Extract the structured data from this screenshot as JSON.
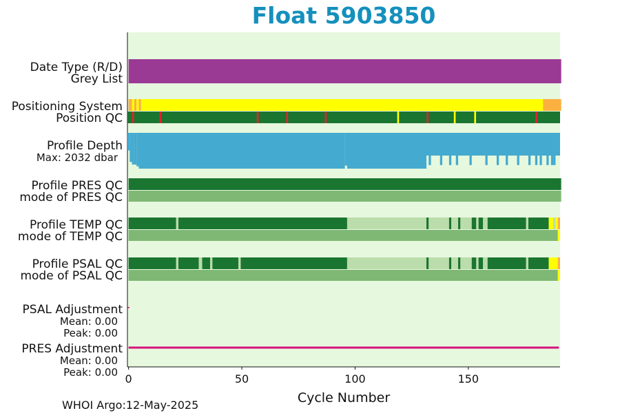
{
  "chart_data": {
    "type": "heatmap",
    "title": "Float 5903850",
    "xlabel": "Cycle Number",
    "xlim": [
      -0.5,
      190.5
    ],
    "xticks": [
      0,
      50,
      100,
      150
    ],
    "xtick_labels": [
      "0",
      "50",
      "100",
      "150"
    ],
    "footer": "WHOI Argo:12-May-2025",
    "colors": {
      "background": "#e6f8de",
      "title": "#1590bd",
      "purple": "#9a3a94",
      "yellow": "#ffff00",
      "orange": "#fbb040",
      "green_dark": "#1a7530",
      "green_mid": "#7fb874",
      "green_light": "#bbdcab",
      "red": "#e8202a",
      "depth_blue": "#44aad0",
      "max_text": "#1590bd",
      "pres_adj": "#d6127a"
    },
    "rows": {
      "date_type": {
        "label": "Date Type (R/D)",
        "segments": [
          {
            "from": 0,
            "to": 191,
            "color": "purple"
          }
        ]
      },
      "grey_list": {
        "label": "Grey List"
      },
      "positioning_system": {
        "label": "Positioning System",
        "segments": [
          {
            "from": 0,
            "to": 1.5,
            "color": "orange"
          },
          {
            "from": 1.5,
            "to": 2.5,
            "color": "yellow"
          },
          {
            "from": 2.5,
            "to": 3.5,
            "color": "orange"
          },
          {
            "from": 3.5,
            "to": 4.5,
            "color": "yellow"
          },
          {
            "from": 4.5,
            "to": 5.5,
            "color": "orange"
          },
          {
            "from": 5.5,
            "to": 183,
            "color": "yellow"
          },
          {
            "from": 183,
            "to": 191,
            "color": "orange"
          }
        ]
      },
      "position_qc": {
        "label": "Position QC",
        "base": "green_dark",
        "marks": [
          {
            "x": 2,
            "color": "red"
          },
          {
            "x": 14,
            "color": "red"
          },
          {
            "x": 57,
            "color": "red"
          },
          {
            "x": 70,
            "color": "red"
          },
          {
            "x": 87,
            "color": "red"
          },
          {
            "x": 119,
            "color": "yellow"
          },
          {
            "x": 132,
            "color": "red"
          },
          {
            "x": 144,
            "color": "yellow"
          },
          {
            "x": 153,
            "color": "yellow"
          },
          {
            "x": 180,
            "color": "red"
          }
        ]
      },
      "profile_depth": {
        "label": "Profile Depth",
        "max_label": "Max: 2032 dbar",
        "max_dbar": 2032,
        "depths": [
          {
            "from": 0,
            "to": 1,
            "dbar": 1000
          },
          {
            "from": 1,
            "to": 2,
            "dbar": 1650
          },
          {
            "from": 2,
            "to": 3,
            "dbar": 1800
          },
          {
            "from": 3,
            "to": 4,
            "dbar": 1800
          },
          {
            "from": 4,
            "to": 5,
            "dbar": 1900
          },
          {
            "from": 5,
            "to": 96,
            "dbar": 2032
          },
          {
            "from": 96,
            "to": 97,
            "dbar": 1860
          },
          {
            "from": 97,
            "to": 132,
            "dbar": 2032
          }
        ],
        "late_base_dbar": 1290,
        "late_spikes": [
          133,
          138,
          142,
          145,
          151,
          158,
          163,
          167,
          172,
          177,
          180,
          182,
          185,
          187,
          188
        ],
        "late_spike_dbar": 1830
      },
      "pres_qc": {
        "label": "Profile PRES QC",
        "segments": [
          {
            "from": 0,
            "to": 191,
            "color": "green_dark"
          }
        ]
      },
      "pres_mode": {
        "label": "mode of PRES QC",
        "segments": [
          {
            "from": 0,
            "to": 191,
            "color": "green_mid"
          }
        ]
      },
      "temp_qc": {
        "label": "Profile TEMP QC",
        "segments": [
          {
            "from": 0,
            "to": 21,
            "color": "green_dark"
          },
          {
            "from": 21,
            "to": 22,
            "color": "green_light"
          },
          {
            "from": 22,
            "to": 96.5,
            "color": "green_dark"
          },
          {
            "from": 96.5,
            "to": 131.5,
            "color": "green_light"
          },
          {
            "from": 131.5,
            "to": 132.5,
            "color": "green_dark"
          },
          {
            "from": 132.5,
            "to": 141.5,
            "color": "green_light"
          },
          {
            "from": 141.5,
            "to": 142.5,
            "color": "green_dark"
          },
          {
            "from": 142.5,
            "to": 145.5,
            "color": "green_light"
          },
          {
            "from": 145.5,
            "to": 146.5,
            "color": "green_dark"
          },
          {
            "from": 146.5,
            "to": 151.5,
            "color": "green_light"
          },
          {
            "from": 151.5,
            "to": 153.5,
            "color": "green_dark"
          },
          {
            "from": 153.5,
            "to": 154.5,
            "color": "green_light"
          },
          {
            "from": 154.5,
            "to": 156.5,
            "color": "green_dark"
          },
          {
            "from": 156.5,
            "to": 158.5,
            "color": "green_light"
          },
          {
            "from": 158.5,
            "to": 175.5,
            "color": "green_dark"
          },
          {
            "from": 175.5,
            "to": 176.5,
            "color": "green_light"
          },
          {
            "from": 176.5,
            "to": 185.5,
            "color": "green_dark"
          },
          {
            "from": 185.5,
            "to": 187.5,
            "color": "yellow"
          },
          {
            "from": 187.5,
            "to": 188.5,
            "color": "green_light"
          },
          {
            "from": 188.5,
            "to": 189.5,
            "color": "yellow"
          },
          {
            "from": 189.5,
            "to": 190.5,
            "color": "orange"
          }
        ]
      },
      "temp_mode": {
        "label": "mode of TEMP QC",
        "segments": [
          {
            "from": 0,
            "to": 189.5,
            "color": "green_mid"
          },
          {
            "from": 189.5,
            "to": 190.5,
            "color": "yellow"
          }
        ]
      },
      "psal_qc": {
        "label": "Profile PSAL QC",
        "segments": [
          {
            "from": 0,
            "to": 21,
            "color": "green_dark"
          },
          {
            "from": 21,
            "to": 22,
            "color": "green_light"
          },
          {
            "from": 22,
            "to": 31,
            "color": "green_dark"
          },
          {
            "from": 31,
            "to": 32.5,
            "color": "green_light"
          },
          {
            "from": 32.5,
            "to": 36,
            "color": "green_dark"
          },
          {
            "from": 36,
            "to": 37,
            "color": "green_light"
          },
          {
            "from": 37,
            "to": 48.5,
            "color": "green_dark"
          },
          {
            "from": 48.5,
            "to": 49.5,
            "color": "green_light"
          },
          {
            "from": 49.5,
            "to": 96.5,
            "color": "green_dark"
          },
          {
            "from": 96.5,
            "to": 131.5,
            "color": "green_light"
          },
          {
            "from": 131.5,
            "to": 132.5,
            "color": "green_dark"
          },
          {
            "from": 132.5,
            "to": 141.5,
            "color": "green_light"
          },
          {
            "from": 141.5,
            "to": 142.5,
            "color": "green_dark"
          },
          {
            "from": 142.5,
            "to": 145.5,
            "color": "green_light"
          },
          {
            "from": 145.5,
            "to": 146.5,
            "color": "green_dark"
          },
          {
            "from": 146.5,
            "to": 151.5,
            "color": "green_light"
          },
          {
            "from": 151.5,
            "to": 153.5,
            "color": "green_dark"
          },
          {
            "from": 153.5,
            "to": 154.5,
            "color": "green_light"
          },
          {
            "from": 154.5,
            "to": 156.5,
            "color": "green_dark"
          },
          {
            "from": 156.5,
            "to": 158.5,
            "color": "green_light"
          },
          {
            "from": 158.5,
            "to": 175.5,
            "color": "green_dark"
          },
          {
            "from": 175.5,
            "to": 176.5,
            "color": "green_light"
          },
          {
            "from": 176.5,
            "to": 185.5,
            "color": "green_dark"
          },
          {
            "from": 185.5,
            "to": 189.5,
            "color": "yellow"
          },
          {
            "from": 189.5,
            "to": 190.5,
            "color": "orange"
          }
        ]
      },
      "psal_mode": {
        "label": "mode of PSAL QC",
        "segments": [
          {
            "from": 0,
            "to": 189.5,
            "color": "green_mid"
          },
          {
            "from": 189.5,
            "to": 190.5,
            "color": "yellow"
          }
        ]
      },
      "psal_adjustment": {
        "label": "PSAL Adjustment",
        "mean_label": "Mean: 0.00",
        "peak_label": "Peak: 0.00",
        "values": {
          "from": 0,
          "to": 0,
          "value": 0.0
        }
      },
      "pres_adjustment": {
        "label": "PRES Adjustment",
        "mean_label": "Mean: 0.00",
        "peak_label": "Peak: 0.00",
        "values": {
          "from": 0,
          "to": 190,
          "value": 0.0
        }
      }
    }
  }
}
